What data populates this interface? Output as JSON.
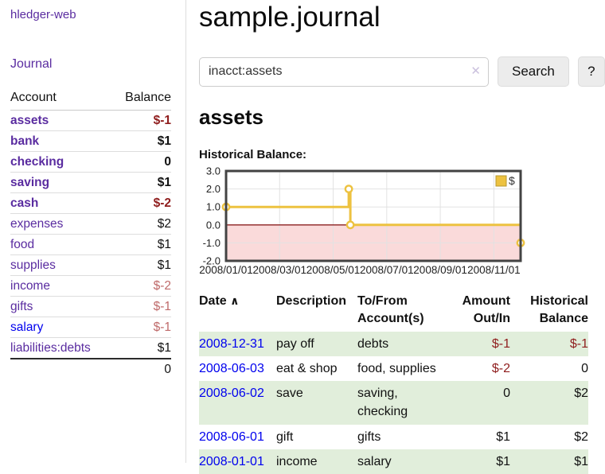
{
  "app": {
    "brand": "hledger-web"
  },
  "sidebar": {
    "journal_label": "Journal",
    "accounts_table": {
      "headers": {
        "account": "Account",
        "balance": "Balance"
      },
      "rows": [
        {
          "name": "assets",
          "indent": 1,
          "bold": true,
          "link_style": "visited",
          "balance": "$-1",
          "balance_style": "neg"
        },
        {
          "name": "bank",
          "indent": 2,
          "bold": true,
          "link_style": "visited",
          "balance": "$1",
          "balance_style": ""
        },
        {
          "name": "checking",
          "indent": 3,
          "bold": true,
          "link_style": "visited",
          "balance": "0",
          "balance_style": ""
        },
        {
          "name": "saving",
          "indent": 3,
          "bold": true,
          "link_style": "visited",
          "balance": "$1",
          "balance_style": ""
        },
        {
          "name": "cash",
          "indent": 2,
          "bold": true,
          "link_style": "visited",
          "balance": "$-2",
          "balance_style": "neg"
        },
        {
          "name": "expenses",
          "indent": 1,
          "bold": false,
          "link_style": "visited",
          "balance": "$2",
          "balance_style": ""
        },
        {
          "name": "food",
          "indent": 2,
          "bold": false,
          "link_style": "visited",
          "balance": "$1",
          "balance_style": ""
        },
        {
          "name": "supplies",
          "indent": 2,
          "bold": false,
          "link_style": "visited",
          "balance": "$1",
          "balance_style": ""
        },
        {
          "name": "income",
          "indent": 1,
          "bold": false,
          "link_style": "visited",
          "balance": "$-2",
          "balance_style": "neg-faded"
        },
        {
          "name": "gifts",
          "indent": 2,
          "bold": false,
          "link_style": "visited",
          "balance": "$-1",
          "balance_style": "neg-faded"
        },
        {
          "name": "salary",
          "indent": 2,
          "bold": false,
          "link_style": "unvisited",
          "balance": "$-1",
          "balance_style": "neg-faded"
        },
        {
          "name": "liabilities:debts",
          "indent": 1,
          "bold": false,
          "link_style": "visited",
          "balance": "$1",
          "balance_style": ""
        }
      ],
      "total": "0"
    }
  },
  "header": {
    "title": "sample.journal"
  },
  "search": {
    "query": "inacct:assets",
    "clear_icon": "✕",
    "search_button": "Search",
    "help_button": "?"
  },
  "account_view": {
    "heading": "assets",
    "chart_title": "Historical Balance:"
  },
  "chart_data": {
    "type": "line",
    "title": "Historical Balance",
    "step": true,
    "series": [
      {
        "name": "$",
        "color": "#EDC240",
        "points": [
          [
            "2008-01-01",
            1
          ],
          [
            "2008-06-01",
            2
          ],
          [
            "2008-06-03",
            0
          ],
          [
            "2008-12-31",
            -1
          ]
        ]
      }
    ],
    "x_ticks": [
      "2008/01/01",
      "2008/03/01",
      "2008/05/01",
      "2008/07/01",
      "2008/09/01",
      "2008/11/01"
    ],
    "y_ticks": [
      3.0,
      2.0,
      1.0,
      0.0,
      -1.0,
      -2.0
    ],
    "ylim": [
      -2,
      3
    ],
    "x_range": [
      "2008-01-01",
      "2008-12-31"
    ],
    "legend_position": "top-right",
    "grid": true,
    "grid_color": "#e2e2e2",
    "negative_region_color": "#fadada",
    "zero_line_color": "#8b2020",
    "plot_border_color": "#434343"
  },
  "register": {
    "sort_icon": "∧",
    "columns": [
      "Date",
      "Description",
      "To/From\nAccount(s)",
      "Amount\nOut/In",
      "Historical\nBalance"
    ],
    "rows": [
      {
        "date": "2008-12-31",
        "description": "pay off",
        "accounts": "debts",
        "amount": "$-1",
        "amount_neg": true,
        "balance": "$-1",
        "balance_neg": true
      },
      {
        "date": "2008-06-03",
        "description": "eat & shop",
        "accounts": "food, supplies",
        "amount": "$-2",
        "amount_neg": true,
        "balance": "0",
        "balance_neg": false
      },
      {
        "date": "2008-06-02",
        "description": "save",
        "accounts": "saving,\nchecking",
        "amount": "0",
        "amount_neg": false,
        "balance": "$2",
        "balance_neg": false
      },
      {
        "date": "2008-06-01",
        "description": "gift",
        "accounts": "gifts",
        "amount": "$1",
        "amount_neg": false,
        "balance": "$2",
        "balance_neg": false
      },
      {
        "date": "2008-01-01",
        "description": "income",
        "accounts": "salary",
        "amount": "$1",
        "amount_neg": false,
        "balance": "$1",
        "balance_neg": false
      }
    ]
  }
}
